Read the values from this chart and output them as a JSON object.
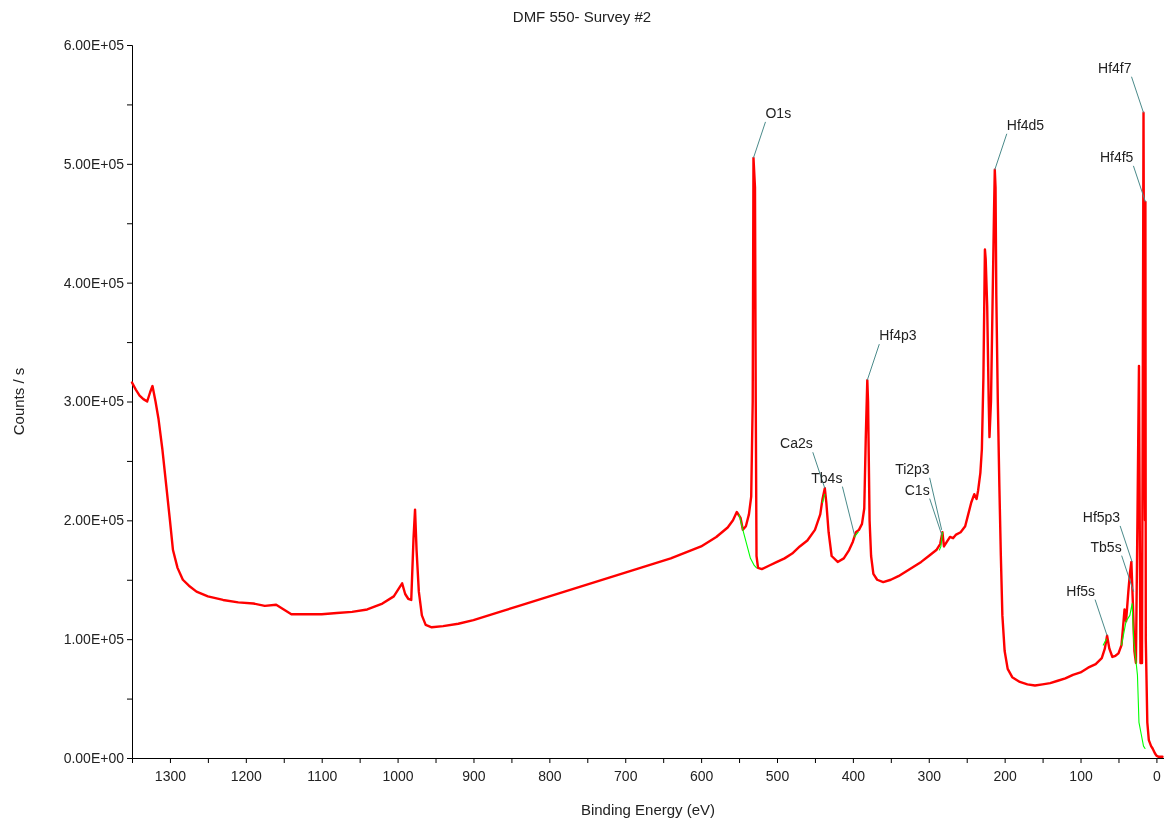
{
  "chart_data": {
    "type": "line",
    "title": "DMF 550- Survey #2",
    "xlabel": "Binding Energy (eV)",
    "ylabel": "Counts / s",
    "xlim": [
      1350,
      -10
    ],
    "xticks": [
      1300,
      {
        "value": 1250,
        "label": null
      },
      1200,
      {
        "value": 1150,
        "label": null
      },
      1100,
      {
        "value": 1050,
        "label": null
      },
      1000,
      {
        "value": 950,
        "label": null
      },
      900,
      {
        "value": 850,
        "label": null
      },
      800,
      {
        "value": 750,
        "label": null
      },
      700,
      {
        "value": 650,
        "label": null
      },
      600,
      {
        "value": 550,
        "label": null
      },
      500,
      {
        "value": 450,
        "label": null
      },
      400,
      {
        "value": 350,
        "label": null
      },
      300,
      {
        "value": 250,
        "label": null
      },
      200,
      {
        "value": 150,
        "label": null
      },
      100,
      {
        "value": 50,
        "label": null
      },
      0
    ],
    "ylim": [
      0,
      600000
    ],
    "yticks": [
      {
        "value": 0,
        "label": "0.00E+00"
      },
      {
        "value": 50000,
        "label": null
      },
      {
        "value": 100000,
        "label": "1.00E+05"
      },
      {
        "value": 150000,
        "label": null
      },
      {
        "value": 200000,
        "label": "2.00E+05"
      },
      {
        "value": 250000,
        "label": null
      },
      {
        "value": 300000,
        "label": "3.00E+05"
      },
      {
        "value": 350000,
        "label": null
      },
      {
        "value": 400000,
        "label": "4.00E+05"
      },
      {
        "value": 450000,
        "label": null
      },
      {
        "value": 500000,
        "label": "5.00E+05"
      },
      {
        "value": 550000,
        "label": null
      },
      {
        "value": 600000,
        "label": "6.00E+05"
      }
    ],
    "grid": false,
    "marker": "none",
    "line_style": "solid",
    "series": [
      {
        "color": "#ff0000",
        "x": [
          1350,
          1345,
          1340,
          1335,
          1330,
          1326,
          1323,
          1319,
          1315,
          1310,
          1305,
          1300,
          1296,
          1290,
          1283,
          1275,
          1265,
          1250,
          1230,
          1210,
          1190,
          1175,
          1160,
          1150,
          1140,
          1120,
          1100,
          1080,
          1060,
          1040,
          1020,
          1005,
          997,
          994,
          990,
          986,
          982,
          979,
          977,
          975,
          972,
          968,
          963,
          955,
          940,
          920,
          900,
          880,
          860,
          840,
          820,
          800,
          780,
          760,
          740,
          720,
          700,
          680,
          660,
          640,
          620,
          600,
          580,
          565,
          558,
          553,
          548,
          545,
          541,
          537,
          534,
          532,
          531,
          529,
          528,
          527,
          525,
          520,
          510,
          500,
          490,
          480,
          470,
          460,
          450,
          443,
          440,
          437,
          435,
          432,
          428,
          420,
          412,
          405,
          400,
          396,
          392,
          388,
          385,
          383,
          381,
          380,
          379,
          378,
          376,
          373,
          368,
          360,
          350,
          340,
          330,
          320,
          310,
          300,
          290,
          285,
          282,
          280,
          276,
          272,
          268,
          264,
          258,
          252,
          248,
          244,
          240,
          237,
          235,
          232,
          230,
          228,
          226,
          225,
          223,
          221,
          220,
          218,
          216,
          214,
          213,
          212,
          211,
          209,
          207,
          205,
          203,
          200,
          196,
          190,
          180,
          170,
          160,
          150,
          140,
          130,
          120,
          110,
          100,
          90,
          80,
          72,
          68,
          65,
          62,
          58,
          54,
          50,
          46,
          44,
          42,
          40,
          37,
          35,
          33,
          31,
          29,
          27,
          25,
          23,
          22,
          21,
          19,
          18,
          17,
          16,
          15,
          14.5,
          14,
          12,
          10,
          7,
          5,
          2,
          0,
          -3,
          -8
        ],
        "values": [
          316000,
          310000,
          305000,
          302000,
          300000,
          308000,
          313000,
          300000,
          285000,
          260000,
          230000,
          200000,
          175000,
          160000,
          150000,
          145000,
          140000,
          136000,
          133000,
          131000,
          130000,
          128000,
          129000,
          125000,
          121000,
          121000,
          121000,
          122000,
          123000,
          125000,
          130000,
          136000,
          144000,
          147000,
          138000,
          134000,
          133000,
          185000,
          209000,
          175000,
          140000,
          120000,
          112000,
          110000,
          111000,
          113000,
          116000,
          120000,
          124000,
          128000,
          132000,
          136000,
          140000,
          144000,
          148000,
          152000,
          156000,
          160000,
          164000,
          168000,
          173000,
          178000,
          186000,
          194000,
          200000,
          207000,
          202000,
          192000,
          195000,
          205000,
          220000,
          300000,
          505000,
          480000,
          300000,
          170000,
          160000,
          159000,
          162000,
          165000,
          168000,
          172000,
          178000,
          183000,
          192000,
          205000,
          218000,
          227000,
          215000,
          190000,
          170000,
          165000,
          168000,
          175000,
          182000,
          190000,
          192000,
          197000,
          210000,
          270000,
          318000,
          300000,
          250000,
          200000,
          170000,
          155000,
          150000,
          148000,
          150000,
          153000,
          157000,
          161000,
          165000,
          170000,
          175000,
          180000,
          190000,
          178000,
          182000,
          186000,
          185000,
          188000,
          190000,
          195000,
          205000,
          215000,
          222000,
          218000,
          225000,
          240000,
          260000,
          320000,
          428000,
          420000,
          380000,
          300000,
          270000,
          300000,
          380000,
          460000,
          495000,
          480000,
          390000,
          300000,
          230000,
          170000,
          120000,
          90000,
          75000,
          68000,
          64000,
          62000,
          61000,
          62000,
          63000,
          65000,
          67000,
          70000,
          72000,
          76000,
          79000,
          84000,
          92000,
          103000,
          92000,
          85000,
          86000,
          88000,
          95000,
          110000,
          125000,
          115000,
          140000,
          155000,
          165000,
          130000,
          90000,
          80000,
          200000,
          330000,
          200000,
          80000,
          80000,
          300000,
          543000,
          300000,
          200000,
          468000,
          100000,
          30000,
          15000,
          10000,
          8000,
          4000,
          2000,
          1000,
          1000
        ]
      },
      {
        "color": "#00ff00",
        "x": [
          550,
          545,
          540,
          535,
          530,
          527,
          500,
          440,
          437,
          420,
          398,
          393,
          300,
          286,
          284,
          282,
          100,
          70,
          66,
          50,
          46,
          40,
          35,
          32,
          30,
          25,
          23,
          20,
          17,
          15
        ],
        "values": [
          205000,
          192000,
          180000,
          168000,
          162000,
          160000,
          null,
          215000,
          222000,
          null,
          186000,
          190000,
          null,
          175000,
          178000,
          190000,
          null,
          95000,
          100000,
          null,
          95000,
          115000,
          120000,
          130000,
          100000,
          70000,
          30000,
          20000,
          10000,
          8000
        ]
      }
    ],
    "annotations": [
      {
        "text": "O1s",
        "x": 531,
        "y": 505000
      },
      {
        "text": "Ca2s",
        "x": 437,
        "y": 227000
      },
      {
        "text": "Tb4s",
        "x": 398,
        "y": 188000
      },
      {
        "text": "Hf4p3",
        "x": 381,
        "y": 318000
      },
      {
        "text": "C1s",
        "x": 283,
        "y": 188000
      },
      {
        "text": "Ti2p3",
        "x": 283,
        "y": 192000
      },
      {
        "text": "Hf4d5",
        "x": 213,
        "y": 495000
      },
      {
        "text": "Hf5s",
        "x": 65,
        "y": 103000
      },
      {
        "text": "Tb5s",
        "x": 30,
        "y": 140000
      },
      {
        "text": "Hf5p3",
        "x": 32,
        "y": 165000
      },
      {
        "text": "Hf4f5",
        "x": 14.5,
        "y": 468000
      },
      {
        "text": "Hf4f7",
        "x": 17,
        "y": 543000
      }
    ]
  }
}
